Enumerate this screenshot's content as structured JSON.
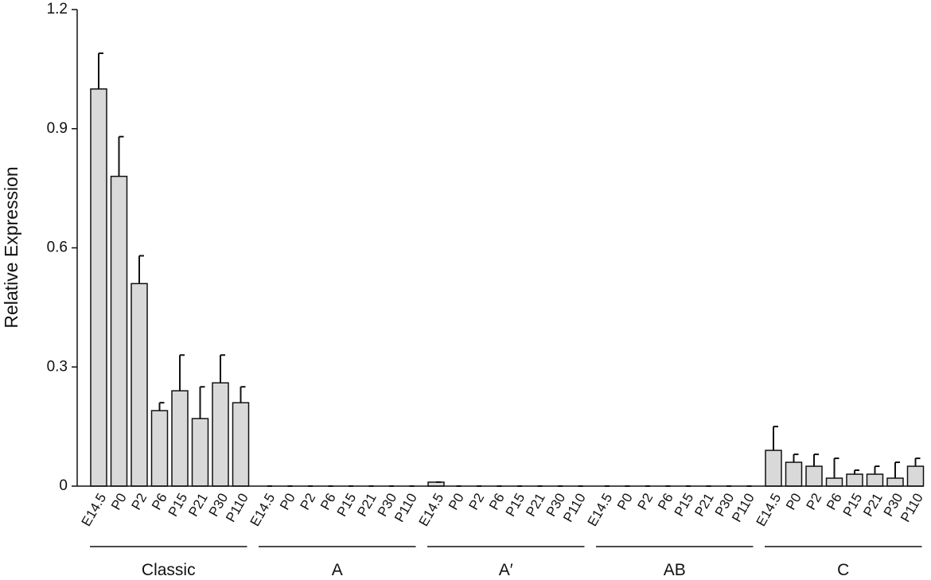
{
  "chart_data": {
    "type": "bar",
    "y_label": "Relative Expression",
    "categories": [
      "E14.5",
      "P0",
      "P2",
      "P6",
      "P15",
      "P21",
      "P30",
      "P110"
    ],
    "groups": [
      {
        "name": "Classic",
        "values": [
          1.0,
          0.78,
          0.51,
          0.19,
          0.24,
          0.17,
          0.26,
          0.21
        ],
        "errors": [
          0.09,
          0.1,
          0.07,
          0.02,
          0.09,
          0.08,
          0.07,
          0.04
        ]
      },
      {
        "name": "A",
        "values": [
          0,
          0,
          0,
          0,
          0,
          0,
          0,
          0
        ],
        "errors": [
          0,
          0,
          0,
          0,
          0,
          0,
          0,
          0
        ]
      },
      {
        "name": "A′",
        "values": [
          0.01,
          0,
          0,
          0,
          0,
          0,
          0,
          0
        ],
        "errors": [
          0,
          0,
          0,
          0,
          0,
          0,
          0,
          0
        ]
      },
      {
        "name": "AB",
        "values": [
          0,
          0,
          0,
          0,
          0,
          0,
          0,
          0
        ],
        "errors": [
          0,
          0,
          0,
          0,
          0,
          0,
          0,
          0
        ]
      },
      {
        "name": "C",
        "values": [
          0.09,
          0.06,
          0.05,
          0.02,
          0.03,
          0.03,
          0.02,
          0.05
        ],
        "errors": [
          0.06,
          0.02,
          0.03,
          0.05,
          0.01,
          0.02,
          0.04,
          0.02
        ]
      }
    ],
    "color": "#d9d9d9",
    "ylim": [
      0,
      1.2
    ],
    "yticks": [
      0,
      0.3,
      0.6,
      0.9,
      1.2
    ]
  }
}
